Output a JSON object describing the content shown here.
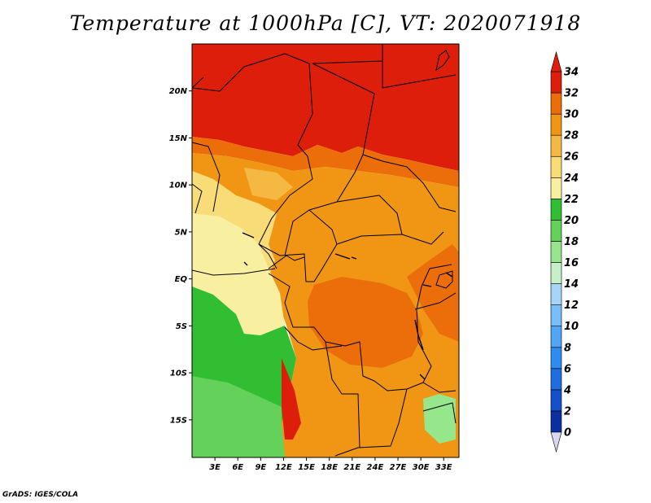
{
  "title": "Temperature at 1000hPa [C], VT: 2020071918",
  "credit": "GrADS: IGES/COLA",
  "map": {
    "lon_range": [
      0,
      35
    ],
    "lat_range": [
      -19,
      25
    ],
    "lat_ticks": [
      {
        "value": 20,
        "label": "20N"
      },
      {
        "value": 15,
        "label": "15N"
      },
      {
        "value": 10,
        "label": "10N"
      },
      {
        "value": 5,
        "label": "5N"
      },
      {
        "value": 0,
        "label": "EQ"
      },
      {
        "value": -5,
        "label": "5S"
      },
      {
        "value": -10,
        "label": "10S"
      },
      {
        "value": -15,
        "label": "15S"
      }
    ],
    "lon_ticks": [
      {
        "value": 3,
        "label": "3E"
      },
      {
        "value": 6,
        "label": "6E"
      },
      {
        "value": 9,
        "label": "9E"
      },
      {
        "value": 12,
        "label": "12E"
      },
      {
        "value": 15,
        "label": "15E"
      },
      {
        "value": 18,
        "label": "18E"
      },
      {
        "value": 21,
        "label": "21E"
      },
      {
        "value": 24,
        "label": "24E"
      },
      {
        "value": 27,
        "label": "27E"
      },
      {
        "value": 30,
        "label": "30E"
      },
      {
        "value": 33,
        "label": "33E"
      }
    ]
  },
  "colorbar": {
    "levels": [
      "0",
      "2",
      "4",
      "6",
      "8",
      "10",
      "12",
      "14",
      "16",
      "18",
      "20",
      "22",
      "24",
      "26",
      "28",
      "30",
      "32",
      "34"
    ],
    "colors": [
      "#0a0a7a",
      "#0a2fa0",
      "#1450c8",
      "#1e6ee0",
      "#2d8cf0",
      "#50a5f5",
      "#78bef8",
      "#a5d6fa",
      "#c8f0c8",
      "#96e68c",
      "#64d25a",
      "#32be32",
      "#f8f0a0",
      "#f8dc78",
      "#f5b943",
      "#f09614",
      "#eb6e0a",
      "#dc1e0a"
    ],
    "under_color": "#d8d8f0",
    "over_color": "#dc1e0a"
  },
  "regions": [
    {
      "name": "north-hot",
      "color": "#dc1e0a"
    },
    {
      "name": "sahel-band",
      "color": "#eb6e0a"
    },
    {
      "name": "central-orange",
      "color": "#f09614"
    },
    {
      "name": "gulf-coast-yellow",
      "color": "#f8dc78"
    },
    {
      "name": "coastal-pale",
      "color": "#f8f0a0"
    },
    {
      "name": "ocean-green",
      "color": "#32be32"
    },
    {
      "name": "ocean-light-green",
      "color": "#64d25a"
    },
    {
      "name": "basin-hot",
      "color": "#eb6e0a"
    },
    {
      "name": "lake-green",
      "color": "#96e68c"
    }
  ]
}
